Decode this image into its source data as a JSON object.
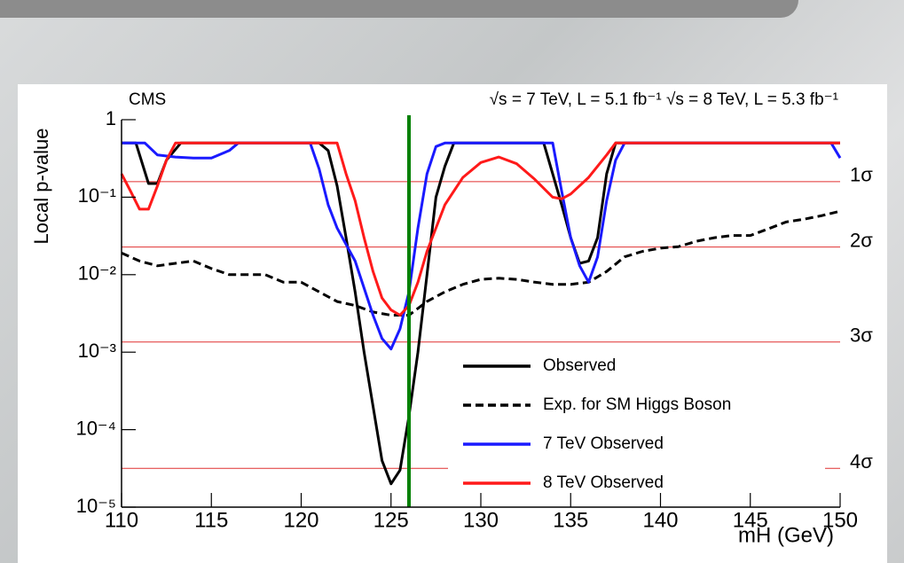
{
  "chart_data": {
    "type": "line",
    "log_y": true,
    "header_left": "CMS",
    "header_right": "√s = 7 TeV, L = 5.1 fb⁻¹ √s = 8 TeV, L = 5.3 fb⁻¹",
    "xlabel": "mH (GeV)",
    "ylabel": "Local p-value",
    "xlim": [
      110,
      150
    ],
    "xticks": [
      110,
      115,
      120,
      125,
      130,
      135,
      140,
      145,
      150
    ],
    "ylim": [
      1e-05,
      1
    ],
    "yticks": [
      1,
      {
        "value": 0.1,
        "label": "10⁻¹"
      },
      {
        "value": 0.01,
        "label": "10⁻²"
      },
      {
        "value": 0.001,
        "label": "10⁻³"
      },
      {
        "value": 0.0001,
        "label": "10⁻⁴"
      },
      {
        "value": 1e-05,
        "label": "10⁻⁵"
      }
    ],
    "legend": "lower right",
    "reference_lines": [
      {
        "value": 0.1587,
        "label": "1σ"
      },
      {
        "value": 0.02275,
        "label": "2σ"
      },
      {
        "value": 0.00135,
        "label": "3σ"
      },
      {
        "value": 3.17e-05,
        "label": "4σ"
      }
    ],
    "reference_color": "#e03030",
    "vline": {
      "x": 126,
      "color": "#008000"
    },
    "series": [
      {
        "name": "Observed",
        "color": "#000000",
        "dash": false,
        "x": [
          110,
          110.8,
          111.5,
          112,
          112.5,
          113.3,
          121,
          121.5,
          122,
          122.5,
          123,
          123.5,
          124,
          124.5,
          125,
          125.5,
          126,
          126.5,
          127,
          127.5,
          128,
          128.5,
          133.5,
          134,
          134.5,
          135,
          135.5,
          136,
          136.5,
          137,
          137.5,
          150
        ],
        "values": [
          0.5,
          0.5,
          0.15,
          0.15,
          0.3,
          0.5,
          0.5,
          0.4,
          0.14,
          0.03,
          0.006,
          0.001,
          0.0002,
          4e-05,
          2e-05,
          3e-05,
          0.00015,
          0.001,
          0.01,
          0.1,
          0.25,
          0.5,
          0.5,
          0.2,
          0.08,
          0.03,
          0.014,
          0.015,
          0.03,
          0.2,
          0.5,
          0.5
        ]
      },
      {
        "name": "Exp. for SM Higgs Boson",
        "color": "#000000",
        "dash": true,
        "x": [
          110,
          111,
          112,
          113,
          114,
          115,
          116,
          117,
          118,
          119,
          120,
          121,
          122,
          123,
          124,
          125,
          126,
          127,
          128,
          129,
          130,
          131,
          132,
          133,
          134,
          135,
          136,
          137,
          138,
          139,
          140,
          141,
          142,
          143,
          144,
          145,
          146,
          147,
          148,
          149,
          150
        ],
        "values": [
          0.019,
          0.015,
          0.013,
          0.014,
          0.015,
          0.012,
          0.01,
          0.01,
          0.01,
          0.008,
          0.008,
          0.006,
          0.0045,
          0.004,
          0.0033,
          0.003,
          0.003,
          0.0045,
          0.006,
          0.0075,
          0.0087,
          0.009,
          0.0087,
          0.008,
          0.0075,
          0.0075,
          0.008,
          0.011,
          0.017,
          0.02,
          0.022,
          0.023,
          0.027,
          0.03,
          0.032,
          0.032,
          0.039,
          0.048,
          0.052,
          0.058,
          0.066
        ]
      },
      {
        "name": "7 TeV Observed",
        "color": "#1a1aff",
        "dash": false,
        "x": [
          110,
          111.3,
          112,
          113,
          114,
          115,
          116,
          116.5,
          120.5,
          121,
          121.5,
          122,
          123,
          124,
          124.5,
          125,
          125.5,
          126,
          126.5,
          127,
          127.5,
          128,
          134,
          134.5,
          135,
          135.5,
          136,
          136.5,
          137,
          137.5,
          138,
          149.5,
          150
        ],
        "values": [
          0.5,
          0.5,
          0.35,
          0.33,
          0.32,
          0.32,
          0.4,
          0.5,
          0.5,
          0.23,
          0.08,
          0.04,
          0.015,
          0.003,
          0.0015,
          0.0011,
          0.002,
          0.006,
          0.04,
          0.2,
          0.45,
          0.5,
          0.5,
          0.12,
          0.03,
          0.013,
          0.008,
          0.017,
          0.09,
          0.3,
          0.5,
          0.5,
          0.32
        ]
      },
      {
        "name": "8 TeV Observed",
        "color": "#ff1a1a",
        "dash": false,
        "x": [
          110,
          110.5,
          111,
          111.5,
          112,
          112.5,
          113,
          122,
          122.5,
          123,
          123.5,
          124,
          124.5,
          125,
          125.5,
          126,
          126.5,
          127,
          128,
          129,
          130,
          131,
          132,
          133,
          134,
          134.5,
          135,
          136,
          137,
          137.5,
          150
        ],
        "values": [
          0.2,
          0.12,
          0.07,
          0.07,
          0.14,
          0.3,
          0.5,
          0.5,
          0.2,
          0.09,
          0.03,
          0.011,
          0.005,
          0.0035,
          0.003,
          0.004,
          0.008,
          0.02,
          0.08,
          0.18,
          0.28,
          0.33,
          0.27,
          0.17,
          0.1,
          0.095,
          0.11,
          0.18,
          0.35,
          0.5,
          0.5
        ]
      }
    ]
  }
}
